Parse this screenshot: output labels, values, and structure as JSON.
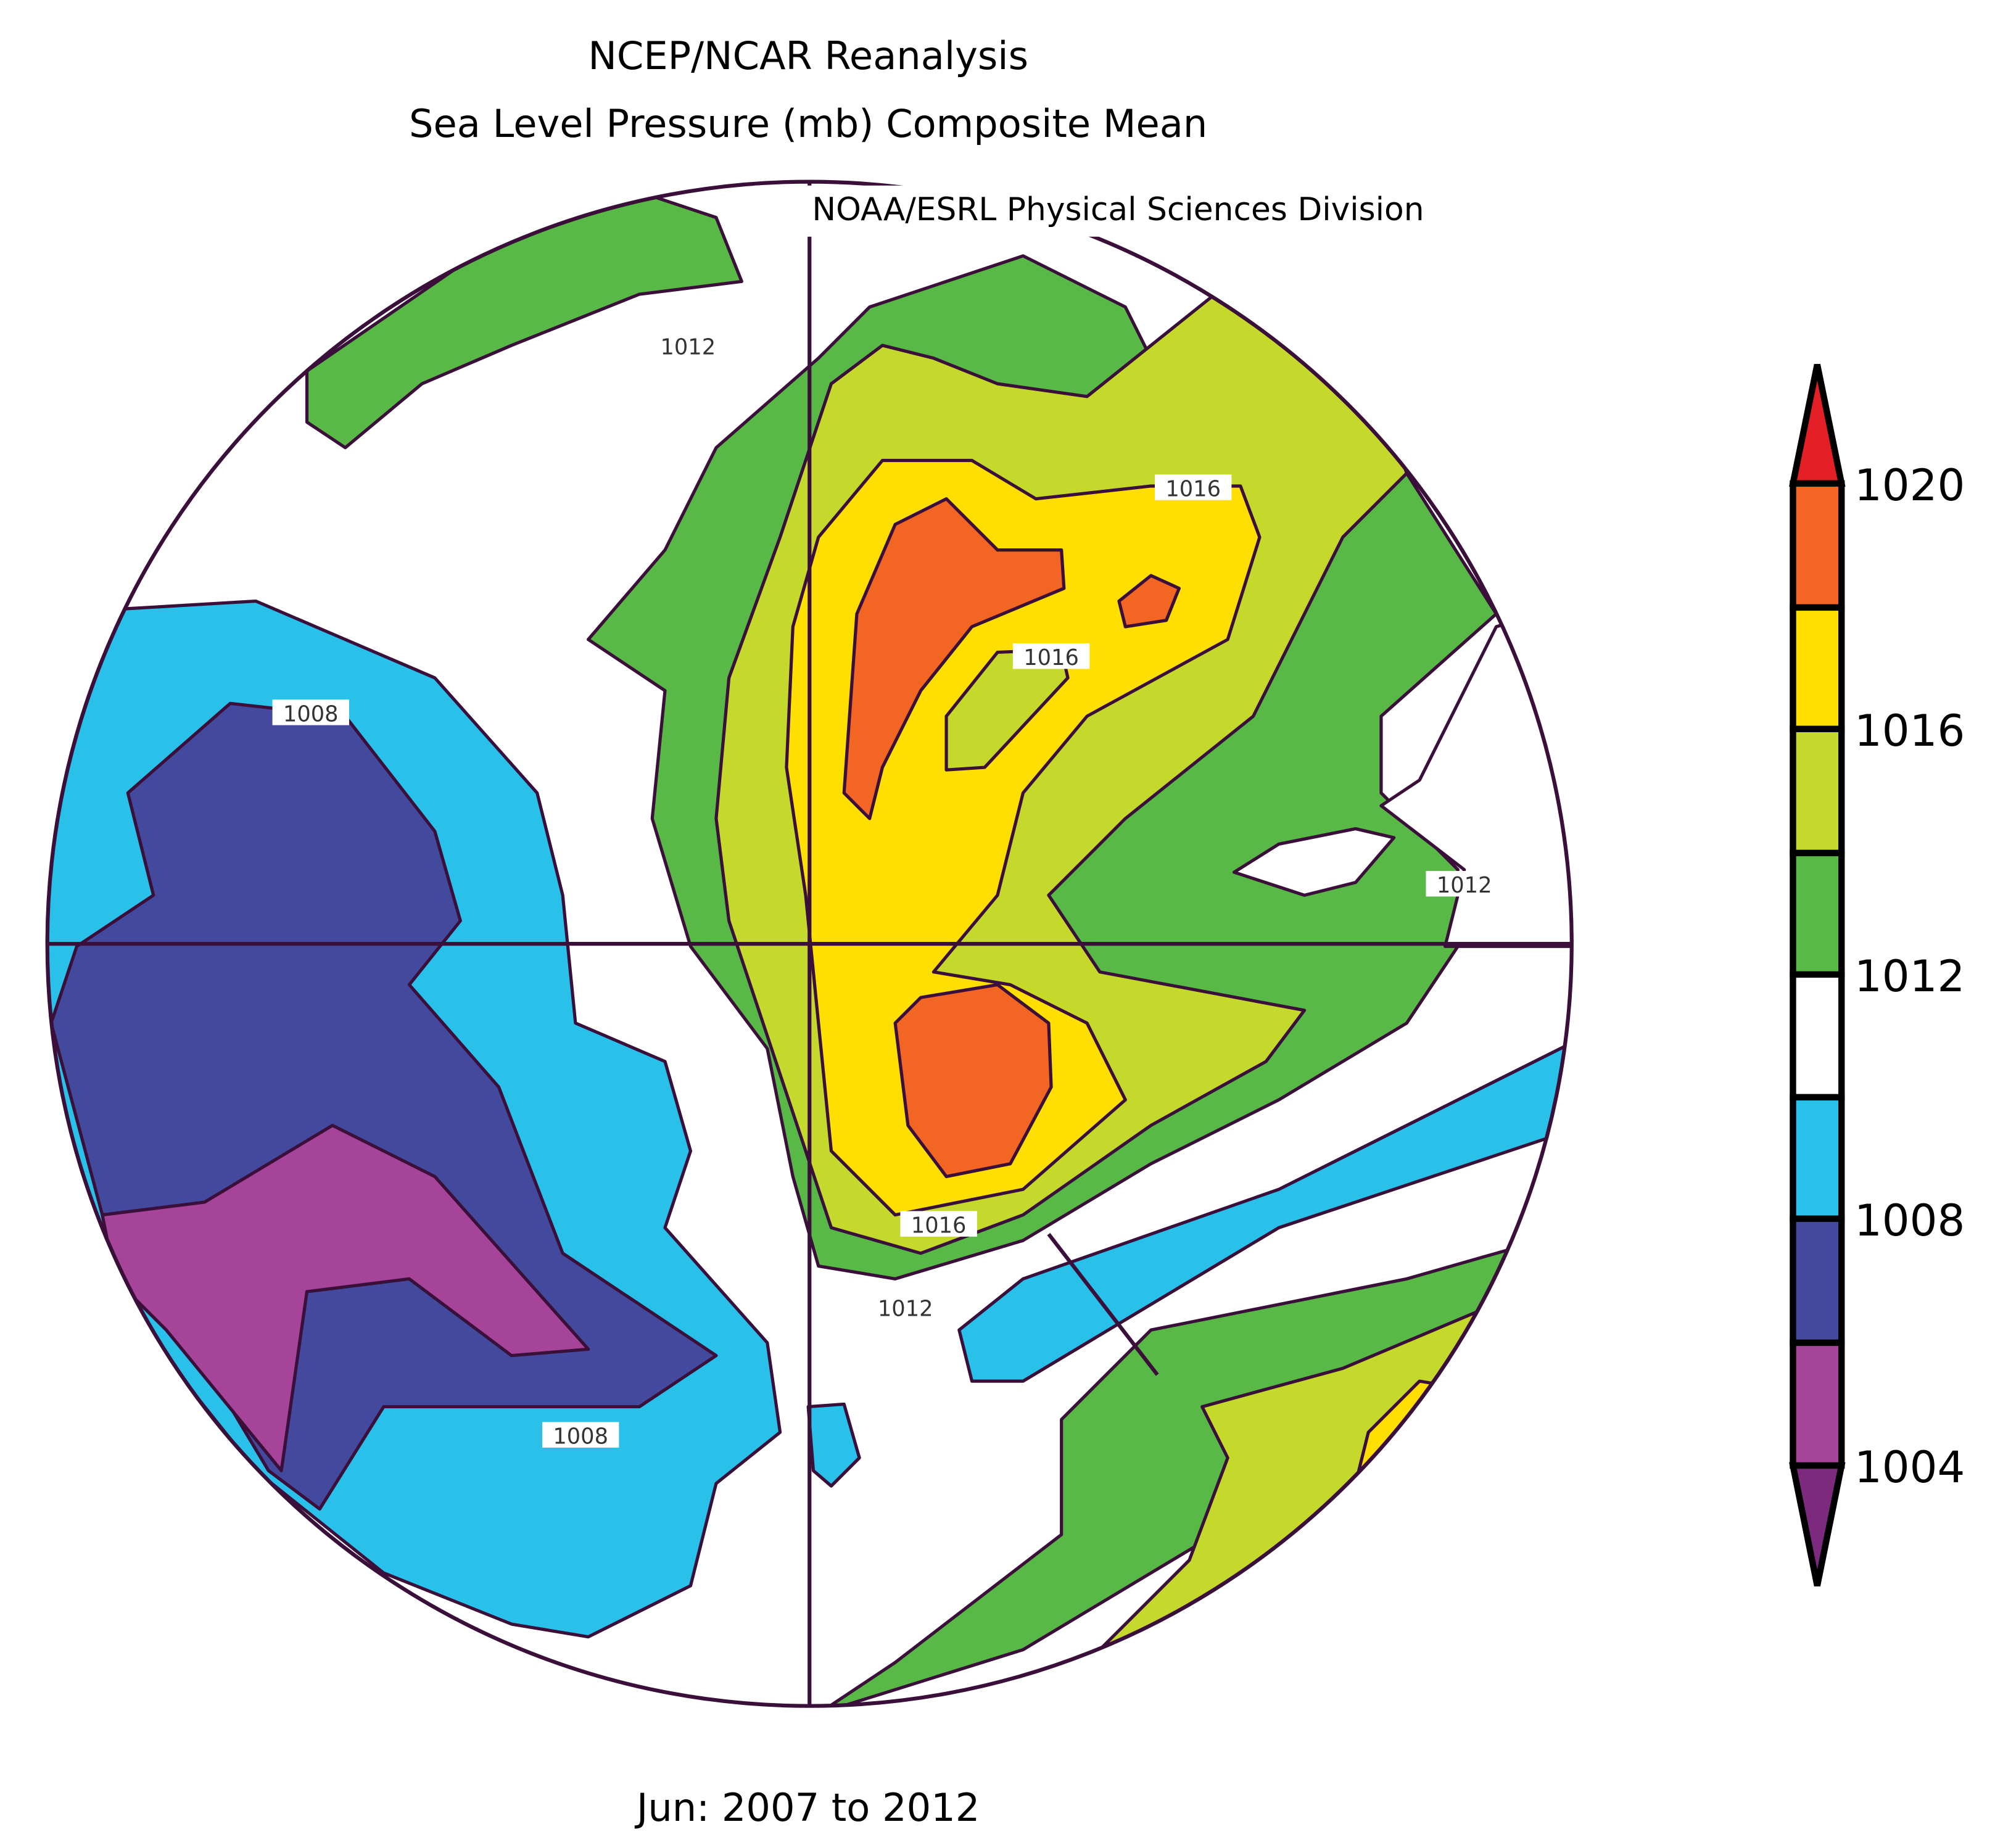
{
  "title_line1": "NCEP/NCAR Reanalysis",
  "title_line2": "Sea Level Pressure (mb) Composite Mean",
  "credit": "NOAA/ESRL Physical Sciences Division",
  "footer": "Jun: 2007 to 2012",
  "projection": "north polar stereographic",
  "units": "mb",
  "colorbar": {
    "labels": [
      "1020",
      "1016",
      "1012",
      "1008",
      "1004"
    ],
    "bins": [
      {
        "range": "<1004",
        "color": "#7b2a7e"
      },
      {
        "range": "1004-1006",
        "color": "#a6449a"
      },
      {
        "range": "1006-1008",
        "color": "#434a9d"
      },
      {
        "range": "1008-1010",
        "color": "#29c0ea"
      },
      {
        "range": "1010-1012",
        "color": "#ffffff"
      },
      {
        "range": "1012-1014",
        "color": "#58b947"
      },
      {
        "range": "1014-1016",
        "color": "#c5d92d"
      },
      {
        "range": "1016-1018",
        "color": "#ffdf00"
      },
      {
        "range": "1018-1020",
        "color": "#f26522"
      },
      {
        "range": ">1020",
        "color": "#e41f26"
      }
    ]
  },
  "contour_labels": [
    "1012",
    "1016",
    "1016",
    "1008",
    "1012",
    "1016",
    "1012",
    "1008"
  ],
  "line_color": "#3a0f3a"
}
